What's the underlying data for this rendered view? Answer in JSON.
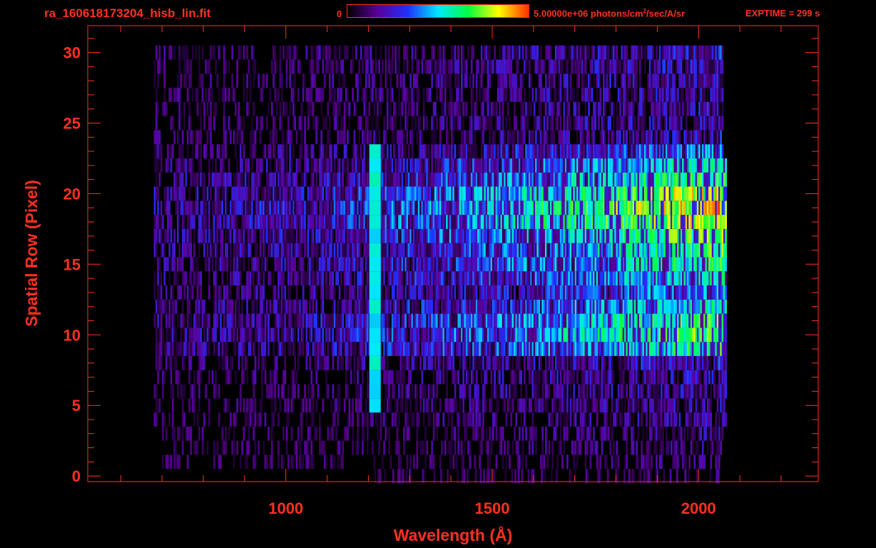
{
  "header": {
    "filename": "ra_160618173204_hisb_lin.fit",
    "colorbar_min_label": "0",
    "colorbar_max_label": "5.00000e+06 photons/cm",
    "colorbar_max_exponent": "2",
    "colorbar_max_units": "/sec/A/sr",
    "exptime_label": "EXPTIME = 299 s"
  },
  "colors": {
    "axis": "#ff3020",
    "background": "#000000",
    "colormap": [
      "#000000",
      "#5a0099",
      "#2030ff",
      "#00e8ff",
      "#00ff40",
      "#ffff00",
      "#ff3000"
    ]
  },
  "chart_data": {
    "type": "heatmap",
    "title": "",
    "xlabel": "Wavelength (Å)",
    "ylabel": "Spatial Row (Pixel)",
    "xlim": [
      520,
      2290
    ],
    "ylim": [
      -0.4,
      31.9
    ],
    "x_ticks": [
      1000,
      1500,
      2000
    ],
    "x_tick_labels": [
      "1000",
      "1500",
      "2000"
    ],
    "y_ticks": [
      0,
      5,
      10,
      15,
      20,
      25,
      30
    ],
    "y_tick_labels": [
      "0",
      "5",
      "10",
      "15",
      "20",
      "25",
      "30"
    ],
    "x_minor_step": 100,
    "y_minor_step": 1,
    "colorbar": {
      "min": 0,
      "max": 5000000,
      "units": "photons/cm^2/sec/A/sr"
    },
    "rows": [
      {
        "row": 0,
        "x0": 1210,
        "x1": 2050,
        "level": 0.05
      },
      {
        "row": 1,
        "x0": 700,
        "x1": 2050,
        "level": 0.07
      },
      {
        "row": 2,
        "x0": 700,
        "x1": 2055,
        "level": 0.09
      },
      {
        "row": 3,
        "x0": 700,
        "x1": 2060,
        "level": 0.12
      },
      {
        "row": 4,
        "x0": 680,
        "x1": 2065,
        "level": 0.15
      },
      {
        "row": 5,
        "x0": 680,
        "x1": 2065,
        "level": 0.18
      },
      {
        "row": 6,
        "x0": 680,
        "x1": 2065,
        "level": 0.2
      },
      {
        "row": 7,
        "x0": 680,
        "x1": 2065,
        "level": 0.22
      },
      {
        "row": 8,
        "x0": 680,
        "x1": 2065,
        "level": 0.26
      },
      {
        "row": 9,
        "x0": 680,
        "x1": 2065,
        "level": 0.62
      },
      {
        "row": 10,
        "x0": 680,
        "x1": 2065,
        "level": 0.72
      },
      {
        "row": 11,
        "x0": 680,
        "x1": 2065,
        "level": 0.68
      },
      {
        "row": 12,
        "x0": 680,
        "x1": 2065,
        "level": 0.55
      },
      {
        "row": 13,
        "x0": 680,
        "x1": 2065,
        "level": 0.42
      },
      {
        "row": 14,
        "x0": 680,
        "x1": 2065,
        "level": 0.55
      },
      {
        "row": 15,
        "x0": 680,
        "x1": 2065,
        "level": 0.62
      },
      {
        "row": 16,
        "x0": 680,
        "x1": 2065,
        "level": 0.65
      },
      {
        "row": 17,
        "x0": 680,
        "x1": 2065,
        "level": 0.72
      },
      {
        "row": 18,
        "x0": 680,
        "x1": 2065,
        "level": 0.84
      },
      {
        "row": 19,
        "x0": 680,
        "x1": 2065,
        "level": 0.9
      },
      {
        "row": 20,
        "x0": 680,
        "x1": 2065,
        "level": 0.82
      },
      {
        "row": 21,
        "x0": 680,
        "x1": 2065,
        "level": 0.66
      },
      {
        "row": 22,
        "x0": 680,
        "x1": 2065,
        "level": 0.55
      },
      {
        "row": 23,
        "x0": 680,
        "x1": 2060,
        "level": 0.4
      },
      {
        "row": 24,
        "x0": 680,
        "x1": 2060,
        "level": 0.22
      },
      {
        "row": 25,
        "x0": 680,
        "x1": 2060,
        "level": 0.2
      },
      {
        "row": 26,
        "x0": 680,
        "x1": 2060,
        "level": 0.2
      },
      {
        "row": 27,
        "x0": 680,
        "x1": 2060,
        "level": 0.2
      },
      {
        "row": 28,
        "x0": 680,
        "x1": 2060,
        "level": 0.2
      },
      {
        "row": 29,
        "x0": 680,
        "x1": 2060,
        "level": 0.22
      },
      {
        "row": 30,
        "x0": 680,
        "x1": 2060,
        "level": 0.25
      }
    ],
    "features": [
      {
        "name": "emission-line",
        "x": 1216,
        "row_min": 5,
        "row_max": 23,
        "level": 0.52
      }
    ]
  }
}
